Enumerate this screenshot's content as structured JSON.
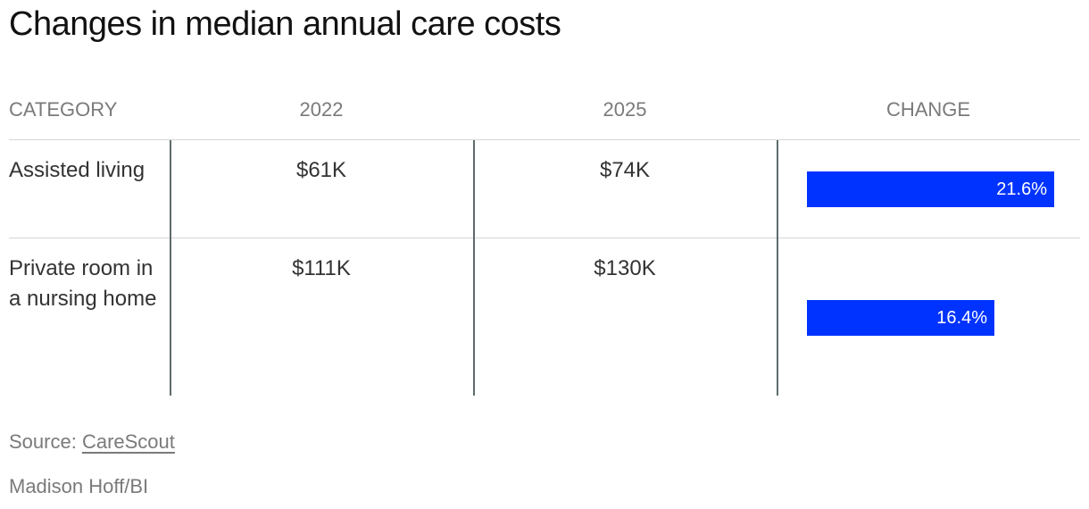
{
  "title": "Changes in median annual care costs",
  "headers": {
    "category": "CATEGORY",
    "col2022": "2022",
    "col2025": "2025",
    "change": "CHANGE"
  },
  "rows": [
    {
      "category": "Assisted living",
      "v2022": "$61K",
      "v2025": "$74K",
      "change_label": "21.6%"
    },
    {
      "category": "Private room in a nursing home",
      "v2022": "$111K",
      "v2025": "$130K",
      "change_label": "16.4%"
    }
  ],
  "source": {
    "prefix": "Source:",
    "link": "CareScout"
  },
  "credit": "Madison Hoff/BI",
  "colors": {
    "bar": "#0033ff"
  },
  "chart_data": {
    "type": "table",
    "title": "Changes in median annual care costs",
    "columns": [
      "CATEGORY",
      "2022",
      "2025",
      "CHANGE"
    ],
    "categories": [
      "Assisted living",
      "Private room in a nursing home"
    ],
    "series": [
      {
        "name": "2022",
        "values": [
          61,
          111
        ]
      },
      {
        "name": "2025",
        "values": [
          74,
          130
        ]
      },
      {
        "name": "CHANGE",
        "values": [
          21.6,
          16.4
        ]
      }
    ],
    "change_scale_max": 26
  }
}
